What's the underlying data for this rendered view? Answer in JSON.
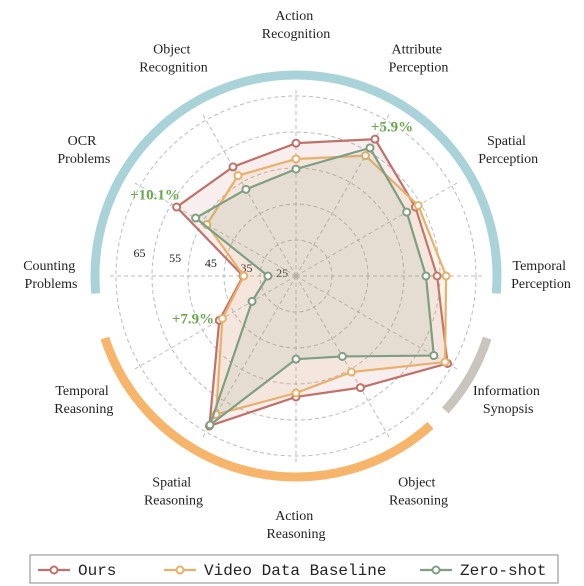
{
  "chart_data": {
    "type": "radar",
    "categories": [
      "Action Recognition",
      "Attribute Perception",
      "Spatial Perception",
      "Temporal Perception",
      "Information Synopsis",
      "Object Reasoning",
      "Action Reasoning",
      "Spatial Reasoning",
      "Temporal Reasoning",
      "Counting Problems",
      "OCR Problems",
      "Object Recognition"
    ],
    "series": [
      {
        "name": "Ours",
        "color": "#c0716a",
        "values": [
          51.9,
          58.9,
          53.3,
          54.2,
          63.6,
          50.8,
          48.6,
          63.1,
          39.6,
          29.7,
          53.3,
          50.0
        ]
      },
      {
        "name": "Video Data Baseline",
        "color": "#e8b06a",
        "values": [
          47.5,
          53.6,
          54.2,
          56.7,
          62.8,
          45.8,
          47.5,
          59.4,
          38.6,
          29.5,
          43.6,
          47.2
        ]
      },
      {
        "name": "Zero-shot",
        "color": "#7f9f82",
        "values": [
          44.7,
          56.1,
          50.5,
          51.1,
          59.2,
          40.8,
          38.1,
          62.8,
          29.1,
          22.8,
          47.2,
          42.8
        ]
      }
    ],
    "ylim": [
      15,
      70
    ],
    "yticks": [
      25,
      35,
      45,
      55,
      65
    ],
    "grid": true,
    "annotations": [
      "+5.9%",
      "+10.1%",
      "+7.9%"
    ]
  }
}
